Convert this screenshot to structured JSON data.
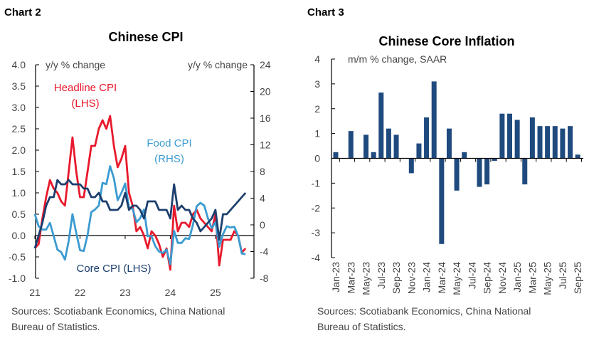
{
  "chart_data": [
    {
      "label": "Chart 2",
      "type": "line",
      "title": "Chinese CPI",
      "left_axis_label": "y/y % change",
      "right_axis_label": "y/y % change",
      "ylim_left": [
        -1.0,
        4.0
      ],
      "ylim_right": [
        -8,
        24
      ],
      "left_ticks": [
        "4.0",
        "3.5",
        "3.0",
        "2.5",
        "2.0",
        "1.5",
        "1.0",
        "0.5",
        "0.0",
        "-0.5",
        "-1.0"
      ],
      "right_ticks": [
        "24",
        "20",
        "16",
        "12",
        "8",
        "4",
        "0",
        "-4",
        "-8"
      ],
      "x_tick_labels": [
        "21",
        "22",
        "23",
        "24",
        "25"
      ],
      "x_start": "2021-01",
      "x_frequency": "monthly",
      "series": [
        {
          "name": "Headline CPI (LHS)",
          "axis": "left",
          "color": "#e8192c",
          "values": [
            -0.3,
            -0.2,
            0.4,
            0.9,
            1.3,
            1.1,
            1.0,
            0.8,
            0.7,
            1.5,
            2.3,
            1.5,
            0.9,
            0.9,
            1.5,
            2.1,
            2.1,
            2.5,
            2.7,
            2.5,
            2.8,
            2.1,
            1.6,
            1.8,
            2.1,
            1.0,
            0.7,
            0.1,
            0.2,
            0.0,
            -0.3,
            0.1,
            0.0,
            -0.2,
            -0.5,
            -0.3,
            -0.8,
            0.7,
            0.1,
            0.3,
            0.3,
            0.2,
            0.5,
            0.6,
            0.4,
            0.3,
            0.2,
            0.1,
            0.5,
            -0.7,
            -0.1,
            -0.1,
            -0.1,
            0.1,
            0.0,
            -0.4,
            -0.3
          ]
        },
        {
          "name": "Food CPI (RHS)",
          "axis": "right",
          "color": "#3b9bd1",
          "values": [
            1.6,
            -0.2,
            -0.7,
            -0.7,
            0.3,
            -1.7,
            -3.7,
            -4.1,
            -5.2,
            -2.4,
            1.6,
            -1.2,
            -3.8,
            -3.9,
            -1.5,
            1.9,
            2.3,
            2.9,
            6.3,
            6.1,
            8.8,
            7.0,
            3.7,
            4.8,
            6.2,
            2.6,
            2.4,
            0.4,
            1.0,
            2.3,
            -1.7,
            -1.7,
            -3.2,
            -4.0,
            -4.2,
            -3.7,
            -5.9,
            -0.9,
            -2.7,
            -2.7,
            -2.0,
            -2.1,
            0.0,
            2.8,
            3.3,
            2.9,
            1.0,
            -0.5,
            0.4,
            -3.3,
            -1.4,
            -0.2,
            -0.4,
            -0.3,
            -1.6,
            -4.3,
            -4.4
          ]
        },
        {
          "name": "Core CPI (LHS)",
          "axis": "left",
          "color": "#1c3f6e",
          "values": [
            -0.3,
            0.0,
            0.3,
            0.7,
            0.9,
            0.9,
            1.3,
            1.2,
            1.2,
            1.3,
            1.2,
            1.2,
            1.2,
            1.1,
            1.1,
            0.9,
            0.9,
            1.0,
            0.8,
            0.8,
            0.6,
            0.6,
            0.6,
            0.7,
            1.0,
            0.6,
            0.7,
            0.7,
            0.6,
            0.4,
            0.8,
            0.8,
            0.8,
            0.6,
            0.6,
            0.6,
            0.4,
            1.2,
            0.6,
            0.7,
            0.6,
            0.6,
            0.4,
            0.3,
            0.1,
            0.2,
            0.3,
            0.4,
            0.6,
            -0.1,
            0.5,
            0.5,
            0.6,
            0.7,
            0.8,
            0.9,
            1.0
          ]
        }
      ],
      "annotations": {
        "headline_line1": "Headline CPI",
        "headline_line2": "(LHS)",
        "food_line1": "Food CPI",
        "food_line2": "(RHS)",
        "core": "Core CPI (LHS)"
      },
      "source_line1": "Sources: Scotiabank Economics, China National",
      "source_line2": "Bureau of Statistics."
    },
    {
      "label": "Chart 3",
      "type": "bar",
      "title": "Chinese Core Inflation",
      "ylabel": "m/m % change, SAAR",
      "ylim": [
        -4,
        4
      ],
      "y_ticks": [
        "4",
        "3",
        "2",
        "1",
        "0",
        "-1",
        "-2",
        "-3",
        "-4"
      ],
      "color": "#1f4a7e",
      "categories": [
        "Jan-23",
        "Feb-23",
        "Mar-23",
        "Apr-23",
        "May-23",
        "Jun-23",
        "Jul-23",
        "Aug-23",
        "Sep-23",
        "Oct-23",
        "Nov-23",
        "Dec-23",
        "Jan-24",
        "Feb-24",
        "Mar-24",
        "Apr-24",
        "May-24",
        "Jun-24",
        "Jul-24",
        "Aug-24",
        "Sep-24",
        "Oct-24",
        "Nov-24",
        "Dec-24",
        "Jan-25",
        "Feb-25",
        "Mar-25",
        "Apr-25",
        "May-25",
        "Jun-25",
        "Jul-25",
        "Aug-25",
        "Sep-25"
      ],
      "values": [
        0.25,
        0,
        1.1,
        0,
        0.95,
        0.25,
        2.65,
        1.2,
        0.95,
        0,
        -0.6,
        0.6,
        1.65,
        3.1,
        -3.45,
        1.2,
        -1.3,
        0.25,
        0,
        -1.15,
        -1.05,
        -0.1,
        1.8,
        1.8,
        1.55,
        -1.05,
        1.65,
        1.3,
        1.3,
        1.3,
        1.2,
        1.3,
        0.15
      ],
      "x_tick_labels": [
        "Jan-23",
        "Mar-23",
        "May-23",
        "Jul-23",
        "Sep-23",
        "Nov-23",
        "Jan-24",
        "Mar-24",
        "May-24",
        "Jul-24",
        "Sep-24",
        "Nov-24",
        "Jan-25",
        "Mar-25",
        "May-25",
        "Jul-25",
        "Sep-25"
      ],
      "source_line1": "Sources: Scotiabank Economics, China National",
      "source_line2": "Bureau of Statistics."
    }
  ]
}
